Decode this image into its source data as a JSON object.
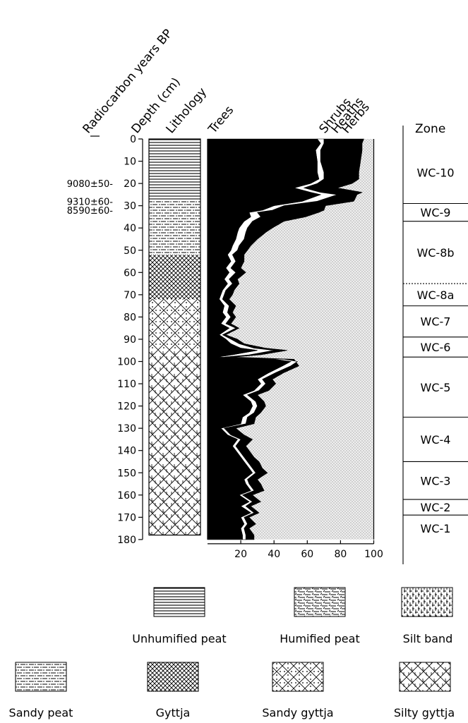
{
  "chart_data": {
    "type": "area",
    "headers": {
      "radiocarbon": "Radiocarbon years BP",
      "depth": "Depth (cm)",
      "lithology": "Lithology",
      "trees": "Trees",
      "shrubs": "Shrubs",
      "heaths": "Heaths",
      "herbs": "Herbs",
      "zone": "Zone"
    },
    "radiocarbon_dates": [
      {
        "label": "9080±50-",
        "depth": 20
      },
      {
        "label": "9310±60-",
        "depth": 28
      },
      {
        "label": "8590±60-",
        "depth": 32
      }
    ],
    "depth_axis": {
      "range": [
        0,
        180
      ],
      "ticks": [
        0,
        10,
        20,
        30,
        40,
        50,
        60,
        70,
        80,
        90,
        100,
        110,
        120,
        130,
        140,
        150,
        160,
        170,
        180
      ]
    },
    "percent_axis": {
      "range": [
        0,
        100
      ],
      "ticks": [
        20,
        40,
        60,
        80,
        100
      ]
    },
    "depths": [
      0,
      2,
      5,
      10,
      15,
      18,
      20,
      22,
      24,
      25,
      28,
      30,
      32,
      33,
      35,
      37,
      40,
      42,
      45,
      48,
      50,
      52,
      55,
      58,
      60,
      63,
      65,
      68,
      70,
      72,
      75,
      78,
      80,
      83,
      85,
      88,
      90,
      92,
      94,
      95,
      97,
      98,
      99,
      100,
      102,
      105,
      108,
      110,
      113,
      115,
      118,
      120,
      123,
      125,
      128,
      130,
      133,
      135,
      138,
      140,
      143,
      145,
      148,
      150,
      153,
      155,
      158,
      160,
      163,
      165,
      168,
      170,
      173,
      175,
      178
    ],
    "series": [
      {
        "name": "Trees",
        "values": [
          66,
          68,
          65,
          66,
          66,
          67,
          62,
          52,
          62,
          68,
          57,
          40,
          33,
          25,
          26,
          22,
          19,
          18,
          17,
          15,
          14,
          12,
          14,
          11,
          13,
          10,
          12,
          9,
          8,
          7,
          10,
          9,
          11,
          8,
          13,
          7,
          11,
          14,
          20,
          30,
          15,
          6,
          40,
          50,
          45,
          37,
          30,
          32,
          28,
          21,
          26,
          27,
          25,
          21,
          20,
          8,
          12,
          18,
          15,
          17,
          20,
          22,
          25,
          27,
          22,
          23,
          26,
          19,
          25,
          20,
          26,
          20,
          22,
          20,
          21
        ]
      },
      {
        "name": "Shrubs",
        "values": [
          70,
          70,
          68,
          68,
          70,
          70,
          66,
          58,
          68,
          78,
          66,
          46,
          39,
          30,
          32,
          27,
          24,
          23,
          22,
          19,
          18,
          15,
          17,
          14,
          17,
          13,
          15,
          11,
          10,
          9,
          13,
          12,
          14,
          11,
          17,
          9,
          14,
          19,
          28,
          40,
          25,
          10,
          46,
          54,
          50,
          41,
          33,
          35,
          31,
          24,
          29,
          30,
          28,
          24,
          23,
          10,
          14,
          20,
          17,
          19,
          22,
          24,
          27,
          29,
          24,
          25,
          28,
          21,
          27,
          23,
          28,
          22,
          24,
          22,
          23
        ]
      },
      {
        "name": "Heaths",
        "values": [
          94,
          93,
          93,
          92,
          91,
          91,
          87,
          78,
          93,
          90,
          88,
          71,
          70,
          67,
          59,
          46,
          39,
          35,
          30,
          26,
          24,
          22,
          22,
          20,
          23,
          18,
          19,
          16,
          15,
          13,
          17,
          15,
          17,
          14,
          19,
          11,
          18,
          22,
          35,
          48,
          32,
          16,
          52,
          53,
          55,
          46,
          39,
          41,
          37,
          30,
          34,
          35,
          32,
          29,
          28,
          17,
          22,
          27,
          23,
          25,
          28,
          31,
          33,
          36,
          30,
          32,
          34,
          27,
          32,
          26,
          31,
          25,
          29,
          25,
          28
        ]
      },
      {
        "name": "Herbs",
        "values": [
          100,
          100,
          100,
          100,
          100,
          100,
          100,
          100,
          100,
          100,
          100,
          100,
          100,
          100,
          100,
          100,
          100,
          100,
          100,
          100,
          100,
          100,
          100,
          100,
          100,
          100,
          100,
          100,
          100,
          100,
          100,
          100,
          100,
          100,
          100,
          100,
          100,
          100,
          100,
          100,
          100,
          100,
          100,
          100,
          100,
          100,
          100,
          100,
          100,
          100,
          100,
          100,
          100,
          100,
          100,
          100,
          100,
          100,
          100,
          100,
          100,
          100,
          100,
          100,
          100,
          100,
          100,
          100,
          100,
          100,
          100,
          100,
          100,
          100,
          100
        ]
      }
    ],
    "lithology_units": [
      {
        "type": "Unhumified peat",
        "from": 0,
        "to": 28
      },
      {
        "type": "Sandy peat",
        "from": 28,
        "to": 52
      },
      {
        "type": "Gyttja",
        "from": 52,
        "to": 72
      },
      {
        "type": "Sandy gyttja",
        "from": 72,
        "to": 95
      },
      {
        "type": "Silty gyttja",
        "from": 95,
        "to": 178
      }
    ],
    "zones": [
      {
        "label": "WC-10",
        "from": 0,
        "to": 29,
        "mid": 15
      },
      {
        "label": "WC-9",
        "from": 29,
        "to": 37,
        "mid": 33
      },
      {
        "label": "WC-8b",
        "from": 37,
        "to": 65,
        "mid": 51
      },
      {
        "label": "WC-8a",
        "from": 65,
        "to": 75,
        "mid": 70
      },
      {
        "label": "WC-7",
        "from": 75,
        "to": 89,
        "mid": 82
      },
      {
        "label": "WC-6",
        "from": 89,
        "to": 98,
        "mid": 93.5
      },
      {
        "label": "WC-5",
        "from": 98,
        "to": 125,
        "mid": 111.5
      },
      {
        "label": "WC-4",
        "from": 125,
        "to": 145,
        "mid": 135
      },
      {
        "label": "WC-3",
        "from": 145,
        "to": 162,
        "mid": 153.5
      },
      {
        "label": "WC-2",
        "from": 162,
        "to": 169,
        "mid": 165.5
      },
      {
        "label": "WC-1",
        "from": 169,
        "to": 180,
        "mid": 175
      }
    ],
    "zone_boundaries": [
      {
        "depth": 29,
        "style": "solid"
      },
      {
        "depth": 37,
        "style": "solid"
      },
      {
        "depth": 65,
        "style": "dotted"
      },
      {
        "depth": 75,
        "style": "solid"
      },
      {
        "depth": 89,
        "style": "solid"
      },
      {
        "depth": 98,
        "style": "solid"
      },
      {
        "depth": 125,
        "style": "solid"
      },
      {
        "depth": 145,
        "style": "solid"
      },
      {
        "depth": 162,
        "style": "solid"
      },
      {
        "depth": 169,
        "style": "solid"
      }
    ],
    "legend": [
      "Unhumified peat",
      "Humified peat",
      "Silt band",
      "Sandy peat",
      "Gyttja",
      "Sandy gyttja",
      "Silty gyttja"
    ]
  }
}
